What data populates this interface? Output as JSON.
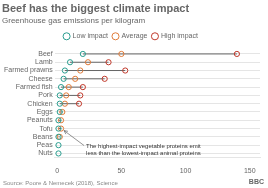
{
  "chart_data": {
    "type": "dot",
    "title": "Beef has the biggest climate impact",
    "subtitle": "Greenhouse gas emissions per kilogram",
    "source": "Source: Poore & Nemecek (2018), Science",
    "logo": "BBC",
    "orientation": "horizontal",
    "categories": [
      "Beef",
      "Lamb",
      "Farmed prawns",
      "Cheese",
      "Farmed fish",
      "Pork",
      "Chicken",
      "Eggs",
      "Peanuts",
      "Tofu",
      "Beans",
      "Peas",
      "Nuts"
    ],
    "series": [
      {
        "name": "Low impact",
        "color": "#2a9d8f",
        "values": [
          20,
          10,
          6,
          5,
          3,
          2,
          2,
          2,
          1,
          1,
          1,
          1,
          1
        ]
      },
      {
        "name": "Average",
        "color": "#e07b39",
        "values": [
          50,
          24,
          18,
          14,
          9,
          7,
          6,
          4,
          3,
          3,
          2,
          null,
          null
        ]
      },
      {
        "name": "High impact",
        "color": "#c0392b",
        "values": [
          140,
          40,
          53,
          37,
          20,
          18,
          17,
          null,
          null,
          null,
          null,
          null,
          null
        ]
      }
    ],
    "xlim": [
      -2,
      158
    ],
    "xticks": [
      0,
      50,
      100,
      150
    ],
    "grid": true,
    "legend": "top",
    "annotations": [
      {
        "text": "The highest-impact vegetable proteins emit\nless than the lowest-impact animal proteins",
        "category": "Tofu"
      }
    ]
  }
}
